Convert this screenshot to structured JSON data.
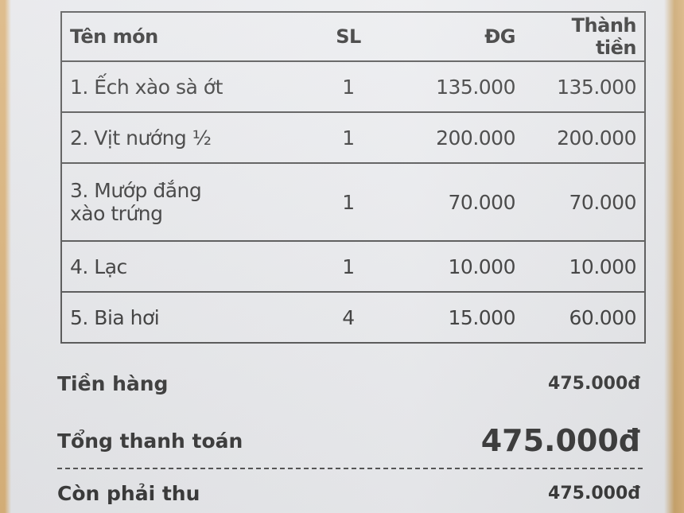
{
  "receipt": {
    "columns": [
      "Tên món",
      "SL",
      "ĐG",
      "Thành tiền"
    ],
    "items": [
      {
        "name": "1. Ếch xào sà ớt",
        "qty": "1",
        "price": "135.000",
        "total": "135.000"
      },
      {
        "name": "2. Vịt nướng ½",
        "qty": "1",
        "price": "200.000",
        "total": "200.000"
      },
      {
        "name": "3. Mướp đắng xào trứng",
        "qty": "1",
        "price": "70.000",
        "total": "70.000"
      },
      {
        "name": "4. Lạc",
        "qty": "1",
        "price": "10.000",
        "total": "10.000"
      },
      {
        "name": "5. Bia hơi",
        "qty": "4",
        "price": "15.000",
        "total": "60.000"
      }
    ],
    "subtotal_label": "Tiền hàng",
    "subtotal_value": "475.000đ",
    "total_label": "Tổng thanh toán",
    "total_value": "475.000đ",
    "due_label": "Còn phải thu",
    "due_value": "475.000đ"
  }
}
